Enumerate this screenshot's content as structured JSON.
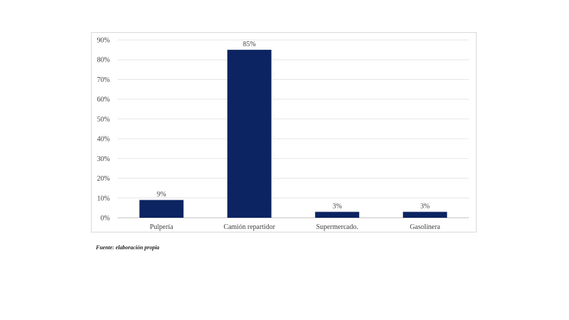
{
  "chart_data": {
    "type": "bar",
    "categories": [
      "Pulpería",
      "Camión repartidor",
      "Supermercado.",
      "Gasolinera"
    ],
    "values": [
      9,
      85,
      3,
      3
    ],
    "data_labels": [
      "9%",
      "85%",
      "3%",
      "3%"
    ],
    "title": "",
    "xlabel": "",
    "ylabel": "",
    "ylim": [
      0,
      90
    ],
    "y_ticks": [
      0,
      10,
      20,
      30,
      40,
      50,
      60,
      70,
      80,
      90
    ],
    "y_tick_labels": [
      "0%",
      "10%",
      "20%",
      "30%",
      "40%",
      "50%",
      "60%",
      "70%",
      "80%",
      "90%"
    ],
    "grid": true,
    "legend": "none",
    "bar_color": "#0c2461",
    "grid_color": "#e6e6e6"
  },
  "source_note": "Fuente: elaboración propia"
}
